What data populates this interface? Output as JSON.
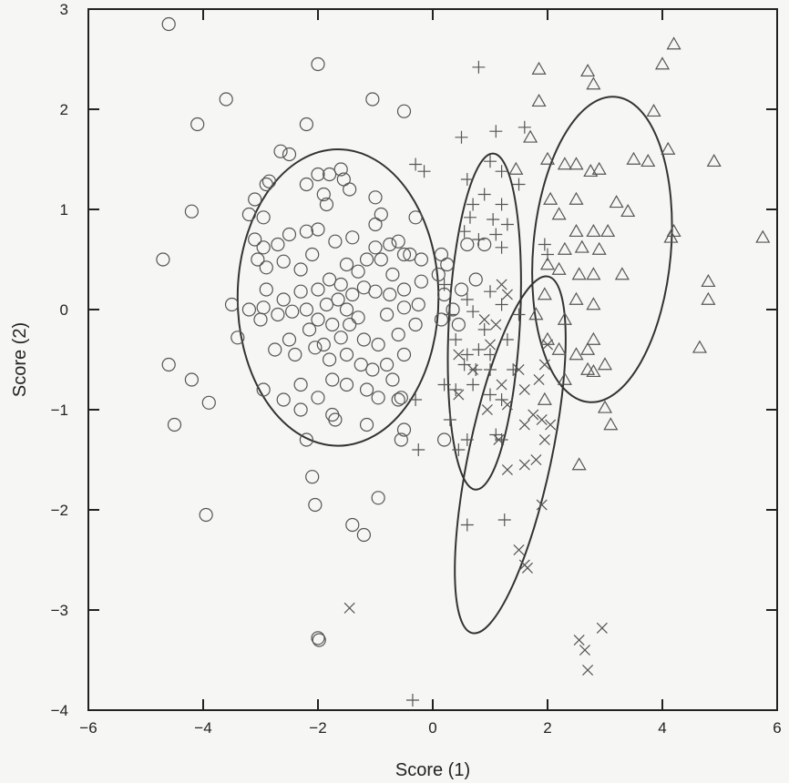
{
  "chart_data": {
    "type": "scatter",
    "title": "",
    "xlabel": "Score (1)",
    "ylabel": "Score (2)",
    "xlim": [
      -6,
      6
    ],
    "ylim": [
      -4,
      3
    ],
    "xticks": [
      -6,
      -4,
      -2,
      0,
      2,
      4,
      6
    ],
    "yticks": [
      -4,
      -3,
      -2,
      -1,
      0,
      1,
      2,
      3
    ],
    "xtick_labels": [
      "−6",
      "−4",
      "−2",
      "0",
      "2",
      "4",
      "6"
    ],
    "ytick_labels": [
      "−4",
      "−3",
      "−2",
      "−1",
      "0",
      "1",
      "2",
      "3"
    ],
    "grid": false,
    "legend": "none",
    "series": [
      {
        "marker": "circle",
        "points": [
          [
            -4.6,
            2.85
          ],
          [
            -2.0,
            2.45
          ],
          [
            -3.6,
            2.1
          ],
          [
            -1.05,
            2.1
          ],
          [
            -4.1,
            1.85
          ],
          [
            -2.2,
            1.85
          ],
          [
            -0.5,
            1.98
          ],
          [
            -4.2,
            0.98
          ],
          [
            -4.7,
            0.5
          ],
          [
            -3.5,
            0.05
          ],
          [
            -3.4,
            -0.28
          ],
          [
            -4.6,
            -0.55
          ],
          [
            -4.2,
            -0.7
          ],
          [
            -3.9,
            -0.93
          ],
          [
            -4.5,
            -1.15
          ],
          [
            -3.95,
            -2.05
          ],
          [
            -2.2,
            -1.3
          ],
          [
            -2.1,
            -1.67
          ],
          [
            -2.05,
            -1.95
          ],
          [
            -1.4,
            -2.15
          ],
          [
            -1.2,
            -2.25
          ],
          [
            -0.95,
            -1.88
          ],
          [
            -2.0,
            -3.28
          ],
          [
            -1.98,
            -3.3
          ],
          [
            -0.5,
            -1.2
          ],
          [
            -0.55,
            -1.3
          ],
          [
            -0.6,
            -0.9
          ],
          [
            0.2,
            -1.3
          ],
          [
            -2.65,
            1.58
          ],
          [
            -2.5,
            1.55
          ],
          [
            -2.85,
            1.28
          ],
          [
            -2.9,
            1.25
          ],
          [
            -2.2,
            1.25
          ],
          [
            -2.0,
            1.35
          ],
          [
            -1.8,
            1.35
          ],
          [
            -1.6,
            1.4
          ],
          [
            -1.55,
            1.3
          ],
          [
            -1.45,
            1.2
          ],
          [
            -3.2,
            0.95
          ],
          [
            -3.1,
            1.1
          ],
          [
            -2.95,
            0.92
          ],
          [
            -1.9,
            1.15
          ],
          [
            -1.85,
            1.05
          ],
          [
            -1.0,
            1.12
          ],
          [
            -0.9,
            0.95
          ],
          [
            -1.0,
            0.85
          ],
          [
            -0.3,
            0.92
          ],
          [
            -3.1,
            0.7
          ],
          [
            -2.95,
            0.62
          ],
          [
            -2.7,
            0.65
          ],
          [
            -2.5,
            0.75
          ],
          [
            -2.2,
            0.78
          ],
          [
            -2.0,
            0.8
          ],
          [
            -1.7,
            0.68
          ],
          [
            -1.4,
            0.72
          ],
          [
            -1.0,
            0.62
          ],
          [
            -0.75,
            0.65
          ],
          [
            -0.6,
            0.68
          ],
          [
            -0.5,
            0.55
          ],
          [
            -3.05,
            0.5
          ],
          [
            -2.9,
            0.42
          ],
          [
            -2.6,
            0.48
          ],
          [
            -2.3,
            0.4
          ],
          [
            -2.1,
            0.55
          ],
          [
            -1.8,
            0.3
          ],
          [
            -1.6,
            0.25
          ],
          [
            -1.5,
            0.45
          ],
          [
            -1.3,
            0.38
          ],
          [
            -1.15,
            0.5
          ],
          [
            -0.9,
            0.5
          ],
          [
            -0.7,
            0.35
          ],
          [
            -0.4,
            0.55
          ],
          [
            -0.2,
            0.5
          ],
          [
            0.15,
            0.55
          ],
          [
            -2.9,
            0.2
          ],
          [
            -2.6,
            0.1
          ],
          [
            -2.3,
            0.18
          ],
          [
            -2.0,
            0.2
          ],
          [
            -1.85,
            0.05
          ],
          [
            -1.65,
            0.1
          ],
          [
            -1.4,
            0.15
          ],
          [
            -1.2,
            0.22
          ],
          [
            -1.0,
            0.18
          ],
          [
            -0.75,
            0.15
          ],
          [
            -0.5,
            0.2
          ],
          [
            -0.2,
            0.28
          ],
          [
            -3.2,
            0.0
          ],
          [
            -2.95,
            0.02
          ],
          [
            -2.7,
            -0.05
          ],
          [
            -2.45,
            -0.02
          ],
          [
            -2.2,
            0.0
          ],
          [
            -2.0,
            -0.1
          ],
          [
            -1.75,
            -0.15
          ],
          [
            -1.5,
            0.0
          ],
          [
            -1.3,
            -0.08
          ],
          [
            -0.8,
            -0.05
          ],
          [
            -0.5,
            0.02
          ],
          [
            -0.25,
            0.05
          ],
          [
            -3.0,
            -0.1
          ],
          [
            -2.5,
            -0.3
          ],
          [
            -2.15,
            -0.2
          ],
          [
            -1.9,
            -0.35
          ],
          [
            -1.6,
            -0.28
          ],
          [
            -1.45,
            -0.15
          ],
          [
            -1.2,
            -0.3
          ],
          [
            -0.95,
            -0.35
          ],
          [
            -0.6,
            -0.25
          ],
          [
            -0.3,
            -0.15
          ],
          [
            -2.75,
            -0.4
          ],
          [
            -2.4,
            -0.45
          ],
          [
            -2.05,
            -0.38
          ],
          [
            -1.8,
            -0.5
          ],
          [
            -1.5,
            -0.45
          ],
          [
            -1.25,
            -0.55
          ],
          [
            -1.05,
            -0.6
          ],
          [
            -0.8,
            -0.55
          ],
          [
            -0.5,
            -0.45
          ],
          [
            -2.95,
            -0.8
          ],
          [
            -2.6,
            -0.9
          ],
          [
            -2.3,
            -0.75
          ],
          [
            -2.0,
            -0.88
          ],
          [
            -1.75,
            -0.7
          ],
          [
            -1.5,
            -0.75
          ],
          [
            -1.15,
            -0.8
          ],
          [
            -0.95,
            -0.88
          ],
          [
            -0.7,
            -0.7
          ],
          [
            -0.55,
            -0.88
          ],
          [
            -1.75,
            -1.05
          ],
          [
            -1.7,
            -1.1
          ],
          [
            -1.15,
            -1.15
          ],
          [
            -2.3,
            -1.0
          ],
          [
            0.1,
            0.35
          ],
          [
            0.25,
            0.45
          ],
          [
            0.5,
            0.2
          ],
          [
            0.35,
            0.0
          ],
          [
            0.15,
            -0.1
          ],
          [
            0.6,
            0.65
          ],
          [
            0.9,
            0.65
          ],
          [
            0.75,
            0.3
          ],
          [
            0.45,
            -0.15
          ],
          [
            0.2,
            0.15
          ]
        ]
      },
      {
        "marker": "plus",
        "points": [
          [
            0.8,
            2.42
          ],
          [
            0.5,
            1.72
          ],
          [
            1.1,
            1.78
          ],
          [
            1.6,
            1.82
          ],
          [
            -0.3,
            1.45
          ],
          [
            -0.15,
            1.38
          ],
          [
            1.0,
            1.48
          ],
          [
            1.2,
            1.38
          ],
          [
            0.6,
            1.3
          ],
          [
            0.9,
            1.15
          ],
          [
            1.5,
            1.25
          ],
          [
            0.7,
            1.05
          ],
          [
            1.2,
            1.05
          ],
          [
            0.65,
            0.92
          ],
          [
            1.05,
            0.9
          ],
          [
            1.3,
            0.85
          ],
          [
            0.55,
            0.78
          ],
          [
            0.8,
            0.7
          ],
          [
            1.1,
            0.75
          ],
          [
            1.2,
            0.62
          ],
          [
            1.95,
            0.65
          ],
          [
            2.0,
            0.55
          ],
          [
            0.2,
            0.25
          ],
          [
            0.6,
            0.1
          ],
          [
            1.0,
            0.18
          ],
          [
            0.3,
            -0.05
          ],
          [
            0.7,
            -0.02
          ],
          [
            1.2,
            0.05
          ],
          [
            1.5,
            -0.05
          ],
          [
            0.4,
            -0.3
          ],
          [
            0.6,
            -0.45
          ],
          [
            0.8,
            -0.4
          ],
          [
            1.0,
            -0.45
          ],
          [
            1.3,
            -0.3
          ],
          [
            0.55,
            -0.55
          ],
          [
            0.75,
            -0.6
          ],
          [
            1.0,
            -0.6
          ],
          [
            0.2,
            -0.75
          ],
          [
            0.4,
            -0.8
          ],
          [
            0.7,
            -0.75
          ],
          [
            1.0,
            -0.85
          ],
          [
            1.2,
            -0.9
          ],
          [
            -0.3,
            -0.9
          ],
          [
            0.3,
            -1.1
          ],
          [
            0.6,
            -1.3
          ],
          [
            1.1,
            -1.25
          ],
          [
            1.2,
            -1.3
          ],
          [
            -0.25,
            -1.4
          ],
          [
            0.45,
            -1.4
          ],
          [
            0.6,
            -2.15
          ],
          [
            1.25,
            -2.1
          ],
          [
            -0.35,
            -3.9
          ],
          [
            0.9,
            -0.2
          ],
          [
            1.4,
            -0.6
          ]
        ]
      },
      {
        "marker": "cross",
        "points": [
          [
            -1.45,
            -2.98
          ],
          [
            0.45,
            -0.85
          ],
          [
            0.7,
            -0.6
          ],
          [
            1.0,
            -0.35
          ],
          [
            1.1,
            -0.15
          ],
          [
            1.2,
            0.25
          ],
          [
            1.3,
            0.15
          ],
          [
            0.9,
            -0.1
          ],
          [
            1.5,
            -0.6
          ],
          [
            1.6,
            -0.8
          ],
          [
            1.85,
            -0.7
          ],
          [
            1.95,
            -0.55
          ],
          [
            2.0,
            -0.35
          ],
          [
            1.75,
            -1.05
          ],
          [
            1.6,
            -1.15
          ],
          [
            1.9,
            -1.1
          ],
          [
            2.05,
            -1.15
          ],
          [
            1.95,
            -1.3
          ],
          [
            1.8,
            -1.5
          ],
          [
            1.6,
            -1.55
          ],
          [
            1.3,
            -1.6
          ],
          [
            1.9,
            -1.95
          ],
          [
            1.5,
            -2.4
          ],
          [
            1.6,
            -2.55
          ],
          [
            1.65,
            -2.58
          ],
          [
            1.2,
            -0.75
          ],
          [
            0.95,
            -1.0
          ],
          [
            1.15,
            -1.3
          ],
          [
            2.55,
            -3.3
          ],
          [
            2.65,
            -3.4
          ],
          [
            2.95,
            -3.18
          ],
          [
            2.7,
            -3.6
          ],
          [
            0.45,
            -0.45
          ],
          [
            1.3,
            -0.95
          ]
        ]
      },
      {
        "marker": "triangle",
        "points": [
          [
            4.2,
            2.65
          ],
          [
            1.85,
            2.4
          ],
          [
            2.7,
            2.38
          ],
          [
            2.8,
            2.25
          ],
          [
            4.0,
            2.45
          ],
          [
            1.85,
            2.08
          ],
          [
            3.85,
            1.98
          ],
          [
            1.7,
            1.72
          ],
          [
            2.0,
            1.5
          ],
          [
            2.3,
            1.45
          ],
          [
            2.5,
            1.45
          ],
          [
            2.75,
            1.38
          ],
          [
            2.9,
            1.4
          ],
          [
            3.5,
            1.5
          ],
          [
            3.75,
            1.48
          ],
          [
            4.1,
            1.6
          ],
          [
            4.9,
            1.48
          ],
          [
            1.45,
            1.4
          ],
          [
            2.05,
            1.1
          ],
          [
            2.5,
            1.1
          ],
          [
            3.2,
            1.07
          ],
          [
            2.2,
            0.95
          ],
          [
            2.5,
            0.78
          ],
          [
            2.8,
            0.78
          ],
          [
            3.05,
            0.78
          ],
          [
            3.4,
            0.98
          ],
          [
            4.15,
            0.72
          ],
          [
            4.2,
            0.78
          ],
          [
            5.75,
            0.72
          ],
          [
            2.3,
            0.6
          ],
          [
            2.6,
            0.62
          ],
          [
            2.9,
            0.6
          ],
          [
            2.0,
            0.45
          ],
          [
            2.2,
            0.4
          ],
          [
            2.55,
            0.35
          ],
          [
            2.8,
            0.35
          ],
          [
            3.3,
            0.35
          ],
          [
            4.8,
            0.28
          ],
          [
            4.8,
            0.1
          ],
          [
            1.95,
            0.15
          ],
          [
            2.5,
            0.1
          ],
          [
            2.8,
            0.05
          ],
          [
            1.8,
            -0.05
          ],
          [
            2.3,
            -0.1
          ],
          [
            2.8,
            -0.3
          ],
          [
            2.0,
            -0.3
          ],
          [
            2.2,
            -0.4
          ],
          [
            2.5,
            -0.45
          ],
          [
            2.7,
            -0.4
          ],
          [
            3.0,
            -0.55
          ],
          [
            4.65,
            -0.38
          ],
          [
            2.3,
            -0.7
          ],
          [
            2.7,
            -0.6
          ],
          [
            2.8,
            -0.62
          ],
          [
            3.0,
            -0.98
          ],
          [
            3.1,
            -1.15
          ],
          [
            2.55,
            -1.55
          ],
          [
            1.95,
            -0.9
          ]
        ]
      }
    ],
    "ellipses": [
      {
        "cx": -1.65,
        "cy": 0.12,
        "rx": 1.75,
        "ry": 1.48,
        "angle": 0
      },
      {
        "cx": 0.9,
        "cy": -0.12,
        "rx": 0.62,
        "ry": 1.68,
        "angle": 3
      },
      {
        "cx": 1.35,
        "cy": -1.45,
        "rx": 0.72,
        "ry": 1.82,
        "angle": 12
      },
      {
        "cx": 2.95,
        "cy": 0.6,
        "rx": 1.2,
        "ry": 1.53,
        "angle": 5
      }
    ]
  }
}
